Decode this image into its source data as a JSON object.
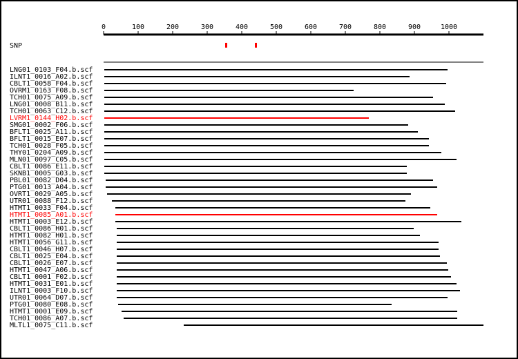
{
  "chart_data": {
    "type": "range",
    "xlim": [
      0,
      1100
    ],
    "xticks": [
      0,
      100,
      200,
      300,
      400,
      500,
      600,
      700,
      800,
      900,
      1000
    ],
    "snp_label": "SNP",
    "snp_color": "#ff0000",
    "snp_positions": [
      355,
      441
    ],
    "reads": [
      {
        "label": "LNG01_0103_F04.b.scf",
        "start": 2,
        "end": 996,
        "color": "#000000"
      },
      {
        "label": "ILNT1_0016_A02.b.scf",
        "start": 2,
        "end": 886,
        "color": "#000000"
      },
      {
        "label": "CBLT1_0058_F04.b.scf",
        "start": 2,
        "end": 992,
        "color": "#000000"
      },
      {
        "label": "OVRM1_0163_F08.b.scf",
        "start": 2,
        "end": 724,
        "color": "#000000"
      },
      {
        "label": "TCH01_0075_A09.b.scf",
        "start": 2,
        "end": 954,
        "color": "#000000"
      },
      {
        "label": "LNG01_0008_B11.b.scf",
        "start": 2,
        "end": 988,
        "color": "#000000"
      },
      {
        "label": "TCH01_0063_C12.b.scf",
        "start": 2,
        "end": 1018,
        "color": "#000000"
      },
      {
        "label": "LVRM1_0144_H02.b.scf",
        "start": 2,
        "end": 768,
        "color": "#ff0000"
      },
      {
        "label": "SMG01_0002_F06.b.scf",
        "start": 2,
        "end": 882,
        "color": "#000000"
      },
      {
        "label": "BFLT1_0025_A11.b.scf",
        "start": 2,
        "end": 910,
        "color": "#000000"
      },
      {
        "label": "BFLT1_0015_E07.b.scf",
        "start": 2,
        "end": 942,
        "color": "#000000"
      },
      {
        "label": "TCH01_0028_F05.b.scf",
        "start": 2,
        "end": 942,
        "color": "#000000"
      },
      {
        "label": "THY01_0204_A09.b.scf",
        "start": 2,
        "end": 978,
        "color": "#000000"
      },
      {
        "label": "MLN01_0097_C05.b.scf",
        "start": 2,
        "end": 1022,
        "color": "#000000"
      },
      {
        "label": "CBLT1_0086_E11.b.scf",
        "start": 2,
        "end": 878,
        "color": "#000000"
      },
      {
        "label": "SKNB1_0005_G03.b.scf",
        "start": 2,
        "end": 878,
        "color": "#000000"
      },
      {
        "label": "PBL01_0082_D04.b.scf",
        "start": 6,
        "end": 954,
        "color": "#000000"
      },
      {
        "label": "PTG01_0013_A04.b.scf",
        "start": 6,
        "end": 966,
        "color": "#000000"
      },
      {
        "label": "OVRT1_0029_A05.b.scf",
        "start": 10,
        "end": 890,
        "color": "#000000"
      },
      {
        "label": "UTR01_0088_F12.b.scf",
        "start": 24,
        "end": 874,
        "color": "#000000"
      },
      {
        "label": "HTMT1_0033_F04.b.scf",
        "start": 34,
        "end": 946,
        "color": "#000000"
      },
      {
        "label": "HTMT1_0085_A01.b.scf",
        "start": 34,
        "end": 966,
        "color": "#ff0000"
      },
      {
        "label": "HTMT1_0003_E12.b.scf",
        "start": 34,
        "end": 1036,
        "color": "#000000"
      },
      {
        "label": "CBLT1_0086_H01.b.scf",
        "start": 38,
        "end": 898,
        "color": "#000000"
      },
      {
        "label": "HTMT1_0082_H01.b.scf",
        "start": 38,
        "end": 916,
        "color": "#000000"
      },
      {
        "label": "HTMT1_0056_G11.b.scf",
        "start": 38,
        "end": 970,
        "color": "#000000"
      },
      {
        "label": "CBLT1_0046_H07.b.scf",
        "start": 38,
        "end": 970,
        "color": "#000000"
      },
      {
        "label": "CBLT1_0025_E04.b.scf",
        "start": 38,
        "end": 974,
        "color": "#000000"
      },
      {
        "label": "CBLT1_0026_E07.b.scf",
        "start": 38,
        "end": 994,
        "color": "#000000"
      },
      {
        "label": "HTMT1_0047_A06.b.scf",
        "start": 38,
        "end": 998,
        "color": "#000000"
      },
      {
        "label": "CBLT1_0001_F02.b.scf",
        "start": 38,
        "end": 1006,
        "color": "#000000"
      },
      {
        "label": "HTMT1_0031_E01.b.scf",
        "start": 38,
        "end": 1022,
        "color": "#000000"
      },
      {
        "label": "ILNT1_0003_F10.b.scf",
        "start": 38,
        "end": 1032,
        "color": "#000000"
      },
      {
        "label": "UTR01_0064_D07.b.scf",
        "start": 38,
        "end": 996,
        "color": "#000000"
      },
      {
        "label": "PTG01_0080_E08.b.scf",
        "start": 42,
        "end": 834,
        "color": "#000000"
      },
      {
        "label": "HTMT1_0001_E09.b.scf",
        "start": 52,
        "end": 1024,
        "color": "#000000"
      },
      {
        "label": "TCH01_0086_A07.b.scf",
        "start": 58,
        "end": 1024,
        "color": "#000000"
      },
      {
        "label": "MLTL1_0075_C11.b.scf",
        "start": 232,
        "end": 1100,
        "color": "#000000"
      }
    ]
  }
}
